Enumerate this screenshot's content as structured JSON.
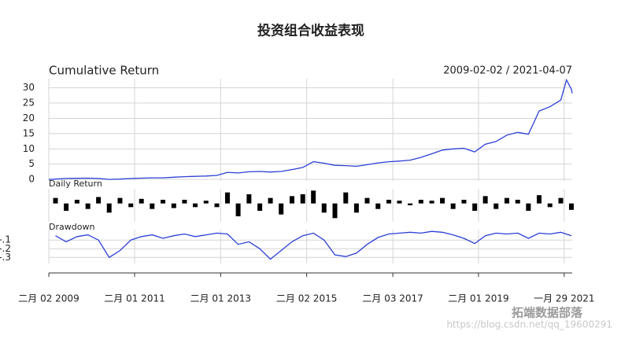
{
  "title": "投资组合收益表现",
  "watermark": {
    "brand": "拓端数据部落",
    "url": "https://blog.csdn.net/qq_19600291"
  },
  "chart_data": [
    {
      "type": "line",
      "title": "Cumulative Return",
      "subtitle": "2009-02-02 / 2021-04-07",
      "color": "#2b3fd6",
      "grid": true,
      "xlim": [
        "2009-02-02",
        "2021-04-07"
      ],
      "ylim": [
        -0.5,
        33
      ],
      "yticks": [
        0,
        5,
        10,
        15,
        20,
        25,
        30
      ],
      "x": [
        "2009-02-02",
        "2009-03-31",
        "2009-06-30",
        "2009-09-30",
        "2009-12-31",
        "2010-03-31",
        "2010-06-30",
        "2010-09-30",
        "2010-12-31",
        "2011-03-31",
        "2011-06-30",
        "2011-09-30",
        "2011-12-31",
        "2012-03-31",
        "2012-06-30",
        "2012-09-30",
        "2012-12-31",
        "2013-03-31",
        "2013-06-30",
        "2013-09-30",
        "2013-12-31",
        "2014-03-31",
        "2014-06-30",
        "2014-09-30",
        "2014-12-31",
        "2015-03-31",
        "2015-06-30",
        "2015-09-30",
        "2015-12-31",
        "2016-03-31",
        "2016-06-30",
        "2016-09-30",
        "2016-12-31",
        "2017-03-31",
        "2017-06-30",
        "2017-09-30",
        "2017-12-31",
        "2018-03-31",
        "2018-06-30",
        "2018-09-30",
        "2018-12-31",
        "2019-03-31",
        "2019-06-30",
        "2019-09-30",
        "2019-12-31",
        "2020-03-31",
        "2020-06-30",
        "2020-09-30",
        "2020-12-31",
        "2021-02-18",
        "2021-03-31",
        "2021-04-07"
      ],
      "values": [
        0,
        0.1,
        0.3,
        0.35,
        0.4,
        0.3,
        0,
        0.1,
        0.3,
        0.4,
        0.5,
        0.5,
        0.7,
        0.9,
        1,
        1.1,
        1.3,
        2.3,
        2.1,
        2.5,
        2.6,
        2.4,
        2.6,
        3.2,
        3.9,
        5.8,
        5.3,
        4.6,
        4.5,
        4.3,
        4.8,
        5.4,
        5.8,
        6,
        6.3,
        7.2,
        8.4,
        9.6,
        10,
        10.2,
        9,
        11.5,
        12.4,
        14.5,
        15.4,
        14.8,
        22.4,
        23.8,
        26,
        32.6,
        29.5,
        28.2
      ]
    },
    {
      "type": "bar",
      "title": "Daily Return",
      "color": "#000000",
      "xlim": [
        "2009-02-02",
        "2021-04-07"
      ],
      "ylim": [
        -0.1,
        0.08
      ],
      "x": [
        "2009-03-31",
        "2009-06-30",
        "2009-09-30",
        "2009-12-31",
        "2010-03-31",
        "2010-06-30",
        "2010-09-30",
        "2010-12-31",
        "2011-03-31",
        "2011-06-30",
        "2011-09-30",
        "2011-12-31",
        "2012-03-31",
        "2012-06-30",
        "2012-09-30",
        "2012-12-31",
        "2013-03-31",
        "2013-06-30",
        "2013-09-30",
        "2013-12-31",
        "2014-03-31",
        "2014-06-30",
        "2014-09-30",
        "2014-12-31",
        "2015-03-31",
        "2015-06-30",
        "2015-09-30",
        "2015-12-31",
        "2016-03-31",
        "2016-06-30",
        "2016-09-30",
        "2016-12-31",
        "2017-03-31",
        "2017-06-30",
        "2017-09-30",
        "2017-12-31",
        "2018-03-31",
        "2018-06-30",
        "2018-09-30",
        "2018-12-31",
        "2019-03-31",
        "2019-06-30",
        "2019-09-30",
        "2019-12-31",
        "2020-03-31",
        "2020-06-30",
        "2020-09-30",
        "2020-12-31",
        "2021-03-31"
      ],
      "values": [
        0.03,
        -0.04,
        0.02,
        -0.03,
        0.035,
        -0.05,
        0.03,
        -0.02,
        0.025,
        -0.03,
        0.02,
        -0.025,
        0.02,
        -0.02,
        0.015,
        -0.02,
        0.06,
        -0.07,
        0.05,
        -0.04,
        0.03,
        -0.06,
        0.04,
        0.05,
        0.07,
        -0.05,
        -0.08,
        0.06,
        -0.05,
        0.03,
        -0.03,
        0.02,
        0.015,
        -0.01,
        0.02,
        0.015,
        0.03,
        -0.03,
        0.02,
        -0.04,
        0.04,
        -0.03,
        0.03,
        0.02,
        -0.04,
        0.045,
        -0.02,
        0.03,
        -0.035
      ]
    },
    {
      "type": "line",
      "title": "Drawdown",
      "color": "#2b3fd6",
      "grid": true,
      "xlim": [
        "2009-02-02",
        "2021-04-07"
      ],
      "ylim": [
        -0.37,
        0.02
      ],
      "yticks": [
        {
          "value": -0.1,
          "label": "-.1"
        },
        {
          "value": -0.2,
          "label": "-.2"
        },
        {
          "value": -0.3,
          "label": "-.3"
        }
      ],
      "xticks": [
        {
          "value": "2009-02-02",
          "label": "二月 02 2009"
        },
        {
          "value": "2011-02-01",
          "label": "二月 01 2011"
        },
        {
          "value": "2013-02-01",
          "label": "二月 01 2013"
        },
        {
          "value": "2015-02-02",
          "label": "二月 02 2015"
        },
        {
          "value": "2017-02-03",
          "label": "二月 03 2017"
        },
        {
          "value": "2019-02-01",
          "label": "二月 01 2019"
        },
        {
          "value": "2021-01-29",
          "label": "一月 29 2021"
        }
      ],
      "x": [
        "2009-03-31",
        "2009-06-30",
        "2009-09-30",
        "2009-12-31",
        "2010-03-31",
        "2010-06-30",
        "2010-09-30",
        "2010-12-31",
        "2011-03-31",
        "2011-06-30",
        "2011-09-30",
        "2011-12-31",
        "2012-03-31",
        "2012-06-30",
        "2012-09-30",
        "2012-12-31",
        "2013-03-31",
        "2013-06-30",
        "2013-09-30",
        "2013-12-31",
        "2014-03-31",
        "2014-06-30",
        "2014-09-30",
        "2014-12-31",
        "2015-03-31",
        "2015-06-30",
        "2015-09-30",
        "2015-12-31",
        "2016-03-31",
        "2016-06-30",
        "2016-09-30",
        "2016-12-31",
        "2017-03-31",
        "2017-06-30",
        "2017-09-30",
        "2017-12-31",
        "2018-03-31",
        "2018-06-30",
        "2018-09-30",
        "2018-12-31",
        "2019-03-31",
        "2019-06-30",
        "2019-09-30",
        "2019-12-31",
        "2020-03-31",
        "2020-06-30",
        "2020-09-30",
        "2020-12-31",
        "2021-03-31"
      ],
      "values": [
        -0.05,
        -0.12,
        -0.06,
        -0.04,
        -0.1,
        -0.3,
        -0.22,
        -0.1,
        -0.06,
        -0.04,
        -0.08,
        -0.05,
        -0.03,
        -0.06,
        -0.04,
        -0.02,
        -0.03,
        -0.15,
        -0.12,
        -0.2,
        -0.32,
        -0.22,
        -0.12,
        -0.05,
        -0.02,
        -0.1,
        -0.27,
        -0.29,
        -0.25,
        -0.15,
        -0.07,
        -0.03,
        -0.02,
        -0.01,
        -0.02,
        0,
        -0.01,
        -0.04,
        -0.08,
        -0.14,
        -0.05,
        -0.02,
        -0.03,
        -0.02,
        -0.08,
        -0.02,
        -0.03,
        -0.01,
        -0.05
      ]
    }
  ]
}
